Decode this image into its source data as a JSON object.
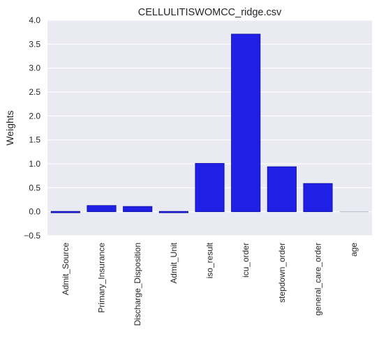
{
  "chart_data": {
    "type": "bar",
    "title": "CELLULITISWOMCC_ridge.csv",
    "xlabel": "",
    "ylabel": "Weights",
    "ylim": [
      -0.5,
      4.0
    ],
    "yticks": [
      "−0.5",
      "0.0",
      "0.5",
      "1.0",
      "1.5",
      "2.0",
      "2.5",
      "3.0",
      "3.5",
      "4.0"
    ],
    "grid": true,
    "categories": [
      "Admit_Source",
      "Primary_Insurance",
      "Discharge_Disposition",
      "Admit_Unit",
      "iso_result",
      "icu_order",
      "stepdown_order",
      "general_care_order",
      "age"
    ],
    "values": [
      -0.02,
      0.13,
      0.11,
      -0.01,
      1.01,
      3.71,
      0.94,
      0.59,
      0.0
    ],
    "colors": {
      "plot_background": "#eaeaf2",
      "grid": "#ffffff",
      "bar": "#1f1fe6",
      "bar_edge": "#0f0f9e",
      "zero_bar_edge": "#b8b8c8",
      "text": "#262626"
    }
  }
}
